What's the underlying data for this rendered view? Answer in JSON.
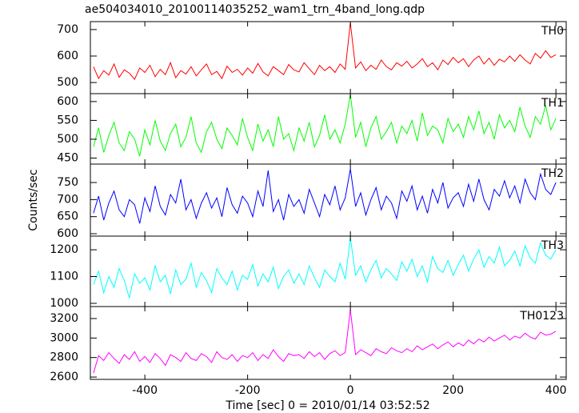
{
  "chart_data": {
    "type": "line",
    "title": "ae504034010_20100114035252_wam1_trn_4band_long.qdp",
    "xlabel": "Time [sec] 0 = 2010/01/14 03:52:52",
    "ylabel": "Counts/sec",
    "xlim": [
      -506,
      420
    ],
    "xticks": [
      -400,
      -200,
      0,
      200,
      400
    ],
    "x": [
      -500,
      -490,
      -480,
      -470,
      -460,
      -450,
      -440,
      -430,
      -420,
      -410,
      -400,
      -390,
      -380,
      -370,
      -360,
      -350,
      -340,
      -330,
      -320,
      -310,
      -300,
      -290,
      -280,
      -270,
      -260,
      -250,
      -240,
      -230,
      -220,
      -210,
      -200,
      -190,
      -180,
      -170,
      -160,
      -150,
      -140,
      -130,
      -120,
      -110,
      -100,
      -90,
      -80,
      -70,
      -60,
      -50,
      -40,
      -30,
      -20,
      -10,
      0,
      10,
      20,
      30,
      40,
      50,
      60,
      70,
      80,
      90,
      100,
      110,
      120,
      130,
      140,
      150,
      160,
      170,
      180,
      190,
      200,
      210,
      220,
      230,
      240,
      250,
      260,
      270,
      280,
      290,
      300,
      310,
      320,
      330,
      340,
      350,
      360,
      370,
      380,
      390,
      400
    ],
    "series": [
      {
        "name": "TH0",
        "color": "#ff0000",
        "ylim": [
          458,
          730
        ],
        "yticks": [
          500,
          600,
          700
        ],
        "values": [
          560,
          515,
          545,
          528,
          570,
          520,
          548,
          535,
          512,
          555,
          538,
          565,
          522,
          550,
          530,
          575,
          518,
          545,
          532,
          560,
          525,
          548,
          570,
          530,
          542,
          515,
          562,
          538,
          550,
          528,
          555,
          535,
          572,
          540,
          525,
          560,
          545,
          530,
          568,
          548,
          540,
          575,
          552,
          530,
          565,
          545,
          560,
          538,
          570,
          550,
          725,
          555,
          578,
          545,
          565,
          550,
          585,
          560,
          548,
          575,
          562,
          580,
          555,
          570,
          590,
          560,
          575,
          548,
          585,
          568,
          595,
          575,
          590,
          560,
          585,
          600,
          570,
          592,
          565,
          588,
          578,
          600,
          580,
          605,
          585,
          570,
          610,
          592,
          620,
          595,
          605
        ]
      },
      {
        "name": "TH1",
        "color": "#00ff00",
        "ylim": [
          434,
          621
        ],
        "yticks": [
          450,
          500,
          550,
          600
        ],
        "values": [
          480,
          530,
          465,
          510,
          545,
          490,
          470,
          520,
          500,
          455,
          525,
          485,
          550,
          495,
          470,
          515,
          540,
          480,
          505,
          560,
          490,
          465,
          520,
          545,
          500,
          475,
          530,
          510,
          485,
          555,
          505,
          470,
          540,
          495,
          525,
          480,
          560,
          500,
          515,
          470,
          530,
          495,
          545,
          480,
          510,
          565,
          500,
          525,
          490,
          540,
          620,
          505,
          545,
          480,
          530,
          560,
          500,
          520,
          545,
          490,
          535,
          515,
          550,
          495,
          570,
          510,
          535,
          525,
          490,
          555,
          520,
          540,
          505,
          560,
          525,
          575,
          515,
          545,
          500,
          565,
          530,
          550,
          520,
          585,
          535,
          505,
          560,
          540,
          590,
          525,
          555
        ]
      },
      {
        "name": "TH2",
        "color": "#0000ff",
        "ylim": [
          593,
          804
        ],
        "yticks": [
          600,
          650,
          700,
          750
        ],
        "values": [
          660,
          710,
          640,
          690,
          725,
          670,
          650,
          700,
          685,
          630,
          705,
          665,
          740,
          680,
          655,
          715,
          690,
          760,
          670,
          700,
          645,
          690,
          720,
          675,
          705,
          650,
          735,
          685,
          660,
          710,
          690,
          650,
          725,
          680,
          785,
          665,
          700,
          640,
          715,
          680,
          700,
          660,
          730,
          690,
          650,
          715,
          685,
          740,
          670,
          705,
          790,
          680,
          720,
          655,
          700,
          735,
          670,
          710,
          690,
          645,
          725,
          695,
          740,
          670,
          710,
          660,
          730,
          690,
          750,
          675,
          705,
          720,
          680,
          745,
          695,
          760,
          700,
          670,
          730,
          710,
          755,
          705,
          740,
          690,
          760,
          720,
          700,
          775,
          730,
          715,
          750
        ]
      },
      {
        "name": "TH3",
        "color": "#00ffff",
        "ylim": [
          988,
          1251
        ],
        "yticks": [
          1000,
          1100,
          1200
        ],
        "values": [
          1070,
          1120,
          1040,
          1100,
          1060,
          1130,
          1085,
          1020,
          1110,
          1075,
          1095,
          1050,
          1140,
          1080,
          1105,
          1035,
          1125,
          1070,
          1090,
          1150,
          1060,
          1115,
          1085,
          1040,
          1130,
          1095,
          1070,
          1120,
          1050,
          1105,
          1090,
          1145,
          1065,
          1110,
          1080,
          1135,
          1055,
          1100,
          1125,
          1075,
          1110,
          1070,
          1140,
          1095,
          1060,
          1125,
          1100,
          1080,
          1150,
          1090,
          1245,
          1105,
          1140,
          1080,
          1125,
          1160,
          1095,
          1130,
          1110,
          1085,
          1155,
          1120,
          1165,
          1100,
          1140,
          1080,
          1175,
          1130,
          1115,
          1160,
          1105,
          1145,
          1180,
          1120,
          1165,
          1200,
          1135,
          1175,
          1150,
          1210,
          1140,
          1160,
          1195,
          1140,
          1215,
          1170,
          1150,
          1225,
          1180,
          1165,
          1200
        ]
      },
      {
        "name": "TH0123",
        "color": "#ff00ff",
        "ylim": [
          2576,
          3323
        ],
        "yticks": [
          2600,
          2800,
          3000,
          3200
        ],
        "values": [
          2640,
          2820,
          2770,
          2850,
          2790,
          2740,
          2830,
          2780,
          2860,
          2760,
          2810,
          2750,
          2840,
          2790,
          2720,
          2830,
          2800,
          2760,
          2850,
          2790,
          2770,
          2840,
          2810,
          2750,
          2860,
          2800,
          2780,
          2830,
          2760,
          2820,
          2800,
          2850,
          2770,
          2830,
          2790,
          2880,
          2810,
          2760,
          2840,
          2820,
          2830,
          2790,
          2860,
          2810,
          2850,
          2780,
          2840,
          2870,
          2820,
          2850,
          3290,
          2830,
          2880,
          2850,
          2820,
          2890,
          2860,
          2840,
          2900,
          2870,
          2850,
          2890,
          2860,
          2920,
          2880,
          2910,
          2940,
          2890,
          2930,
          2960,
          2910,
          2950,
          2920,
          2980,
          2940,
          2990,
          2960,
          3010,
          2970,
          3000,
          3030,
          2980,
          3020,
          3000,
          3050,
          3010,
          2990,
          3060,
          3030,
          3040,
          3070
        ]
      }
    ]
  }
}
